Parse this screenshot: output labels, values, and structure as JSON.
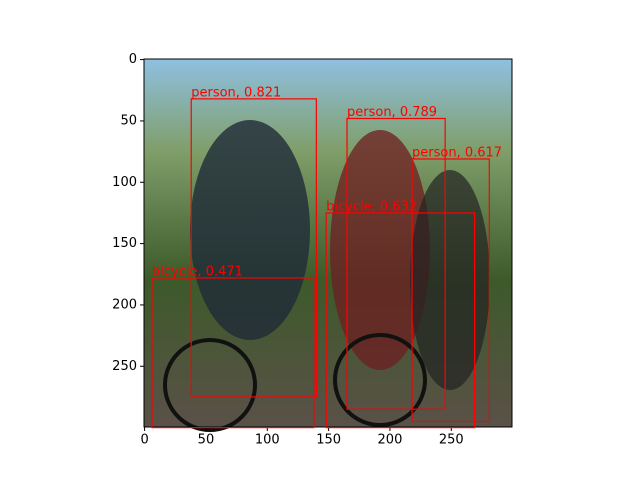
{
  "chart_data": {
    "type": "image-detections",
    "xlim": [
      -0.5,
      299.5
    ],
    "ylim": [
      299.5,
      -0.5
    ],
    "xticks": [
      0,
      50,
      100,
      150,
      200,
      250
    ],
    "yticks": [
      0,
      50,
      100,
      150,
      200,
      250
    ],
    "color": "#ff0000",
    "boxes": [
      {
        "label": "person, 0.821",
        "x1": 38,
        "y1": 32,
        "x2": 140,
        "y2": 275
      },
      {
        "label": "person, 0.789",
        "x1": 165,
        "y1": 48,
        "x2": 245,
        "y2": 285
      },
      {
        "label": "person, 0.617",
        "x1": 218,
        "y1": 81,
        "x2": 281,
        "y2": 295
      },
      {
        "label": "bicycle, 0.632",
        "x1": 148,
        "y1": 125,
        "x2": 269,
        "y2": 300
      },
      {
        "label": "bicycle, 0.471",
        "x1": 6,
        "y1": 178,
        "x2": 138,
        "y2": 300
      }
    ]
  }
}
